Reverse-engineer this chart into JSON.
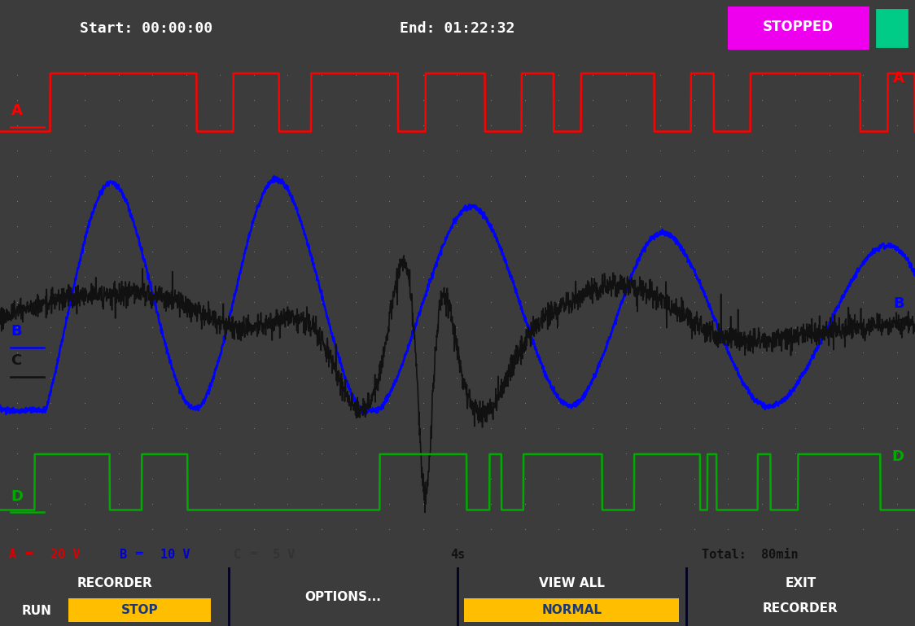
{
  "bg_color": "#3c3c3c",
  "plot_bg_color": "#b4bcb4",
  "header_text_color": "#ffffff",
  "start_text": "Start: 00:00:00",
  "end_text": "End: 01:22:32",
  "stopped_text": "STOPPED",
  "stopped_bg": "#ee00ee",
  "battery_color": "#00cc88",
  "status_bg": "#a8b0a8",
  "button_bg": "#1a3875",
  "stop_yellow": "#ffbf00",
  "normal_yellow": "#ffbf00",
  "ch_A_color": "#ff0000",
  "ch_B_color": "#0000ff",
  "ch_C_color": "#111111",
  "ch_D_color": "#00aa00",
  "grid_dot_color": "#808080"
}
